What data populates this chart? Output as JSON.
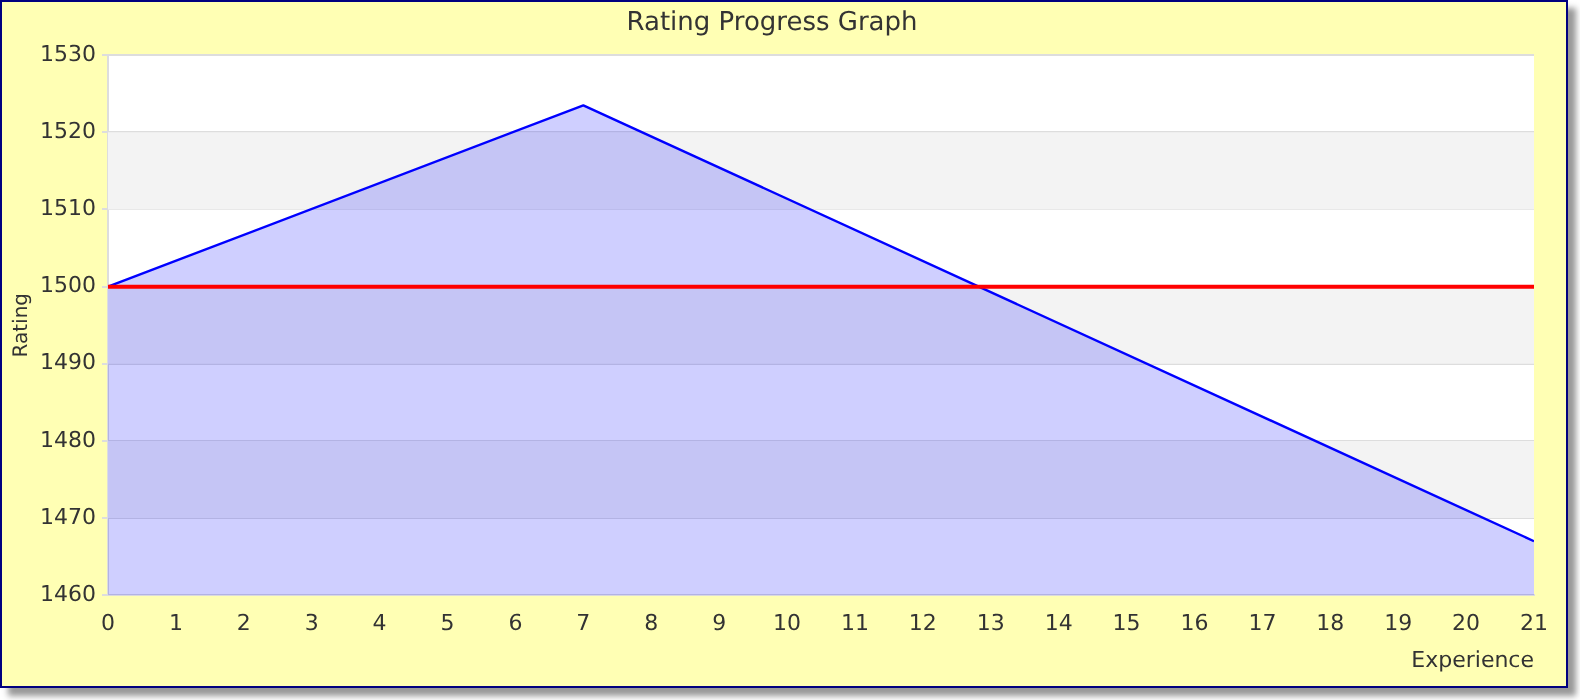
{
  "chart_data": {
    "type": "area",
    "title": "Rating Progress Graph",
    "xlabel": "Experience",
    "ylabel": "Rating",
    "x": [
      0,
      7,
      21
    ],
    "series": [
      {
        "color": "#0000ff",
        "values": [
          1500,
          1523.5,
          1467
        ]
      }
    ],
    "xlim": [
      0,
      21
    ],
    "xticks": [
      0,
      1,
      2,
      3,
      4,
      5,
      6,
      7,
      8,
      9,
      10,
      11,
      12,
      13,
      14,
      15,
      16,
      17,
      18,
      19,
      20,
      21
    ],
    "ylim": [
      1460,
      1530
    ],
    "yticks": [
      1460,
      1470,
      1480,
      1490,
      1500,
      1510,
      1520,
      1530
    ],
    "ref_lines": [
      {
        "axis": "y",
        "value": 1500,
        "color": "#ff0000"
      }
    ],
    "grid": "y",
    "legend": false,
    "marker": "none",
    "line_style": "solid"
  }
}
